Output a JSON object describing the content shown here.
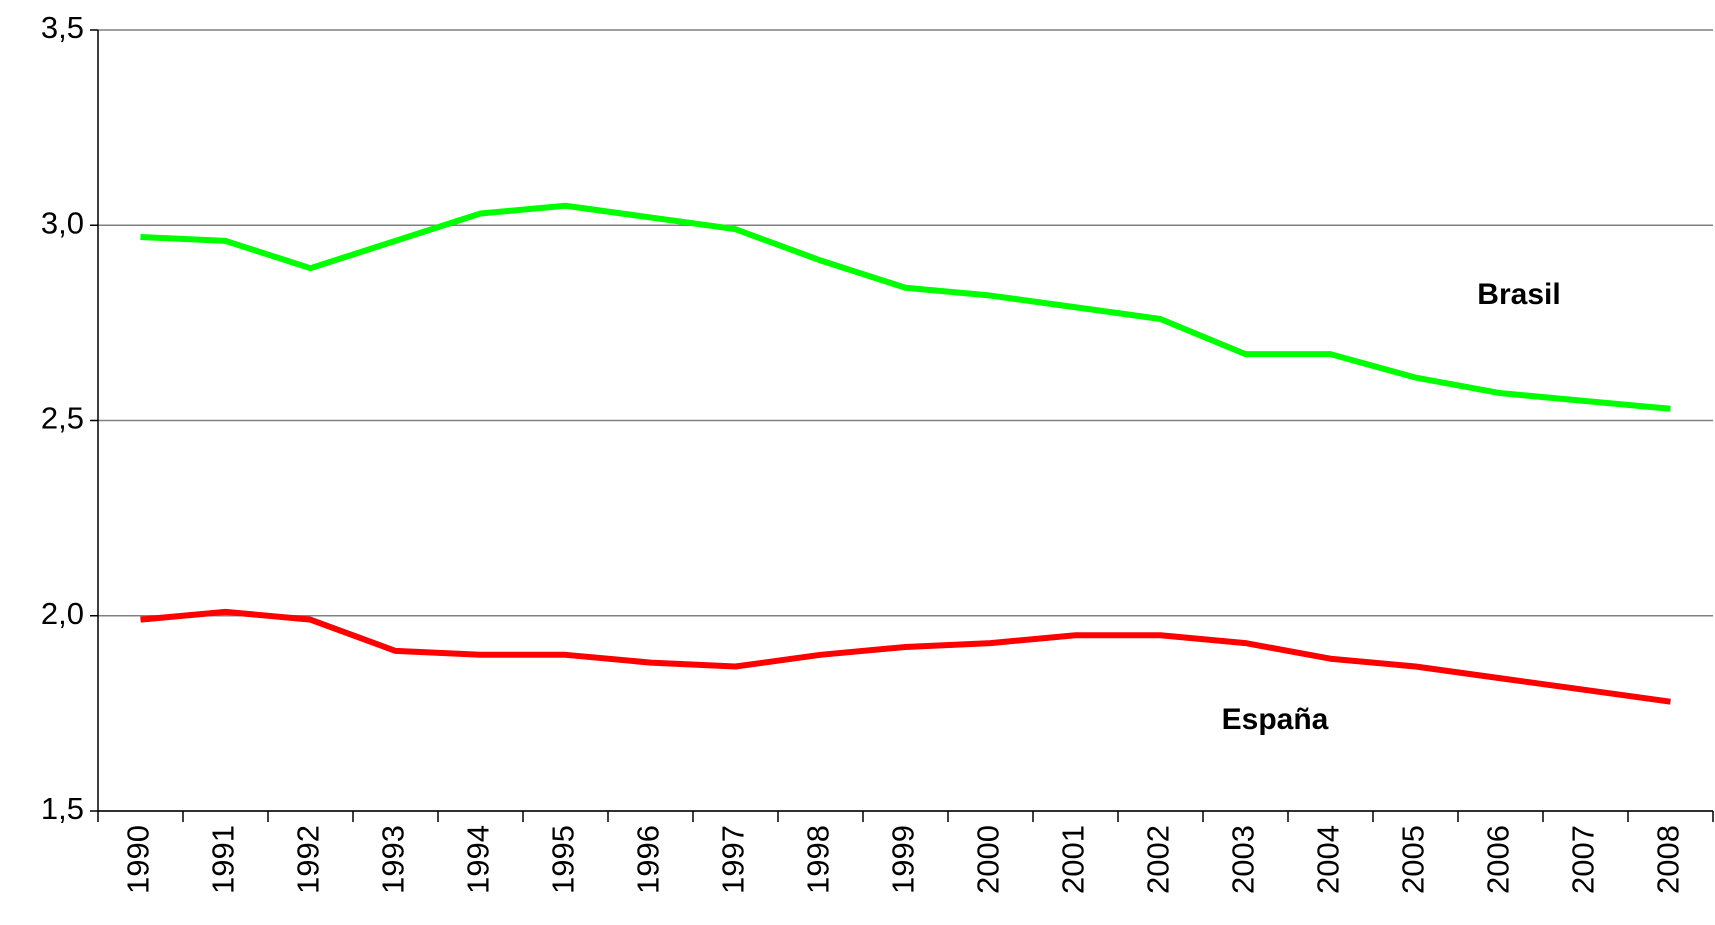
{
  "chart_data": {
    "type": "line",
    "categories": [
      "1990",
      "1991",
      "1992",
      "1993",
      "1994",
      "1995",
      "1996",
      "1997",
      "1998",
      "1999",
      "2000",
      "2001",
      "2002",
      "2003",
      "2004",
      "2005",
      "2006",
      "2007",
      "2008"
    ],
    "series": [
      {
        "name": "Brasil",
        "color": "#00ff00",
        "values": [
          2.97,
          2.96,
          2.89,
          2.96,
          3.03,
          3.05,
          3.02,
          2.99,
          2.91,
          2.84,
          2.82,
          2.79,
          2.76,
          2.67,
          2.67,
          2.61,
          2.57,
          2.55,
          2.53
        ]
      },
      {
        "name": "España",
        "color": "#ff0000",
        "values": [
          1.99,
          2.01,
          1.99,
          1.91,
          1.9,
          1.9,
          1.88,
          1.87,
          1.9,
          1.92,
          1.93,
          1.95,
          1.95,
          1.93,
          1.89,
          1.87,
          1.84,
          1.81,
          1.78
        ]
      }
    ],
    "ylim": [
      1.5,
      3.5
    ],
    "yticks": [
      {
        "value": 1.5,
        "label": "1,5"
      },
      {
        "value": 2.0,
        "label": "2,0"
      },
      {
        "value": 2.5,
        "label": "2,5"
      },
      {
        "value": 3.0,
        "label": "3,0"
      },
      {
        "value": 3.5,
        "label": "3,5"
      }
    ],
    "grid": true
  }
}
